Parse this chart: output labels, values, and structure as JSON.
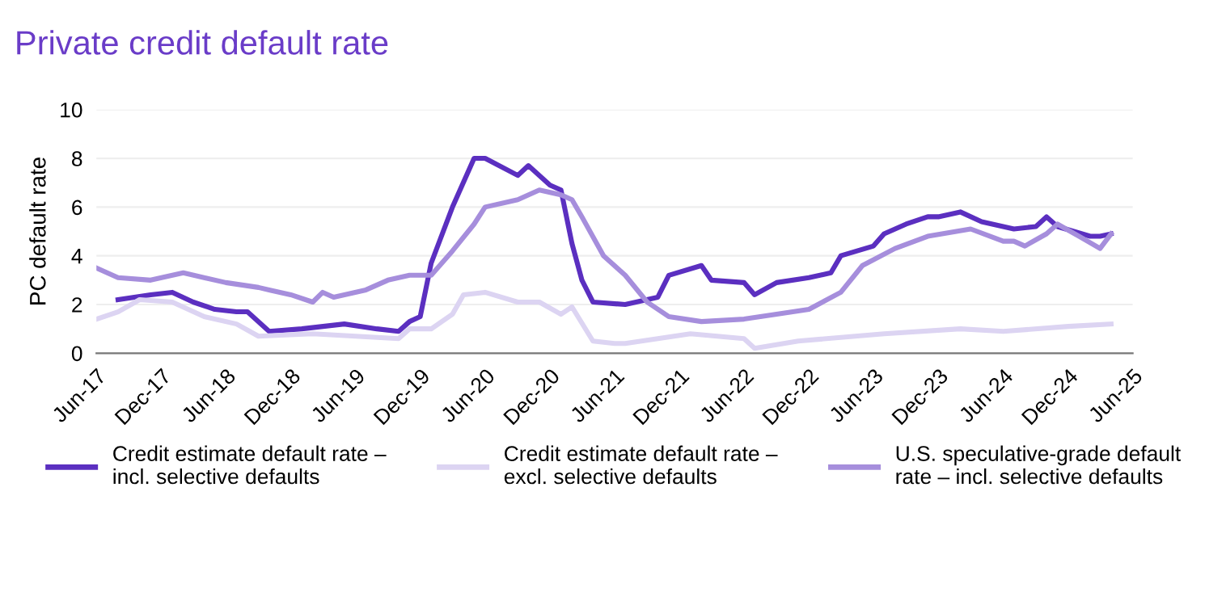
{
  "chart_data": {
    "type": "line",
    "title": "Private credit default rate",
    "ylabel": "PC default rate",
    "ylim": [
      0,
      10
    ],
    "yticks": [
      0,
      2,
      4,
      6,
      8,
      10
    ],
    "xlim": [
      "2017-06",
      "2025-06"
    ],
    "xticks": [
      {
        "value": "2017-06",
        "label": "Jun-17"
      },
      {
        "value": "2017-12",
        "label": "Dec-17"
      },
      {
        "value": "2018-06",
        "label": "Jun-18"
      },
      {
        "value": "2018-12",
        "label": "Dec-18"
      },
      {
        "value": "2019-06",
        "label": "Jun-19"
      },
      {
        "value": "2019-12",
        "label": "Dec-19"
      },
      {
        "value": "2020-06",
        "label": "Jun-20"
      },
      {
        "value": "2020-12",
        "label": "Dec-20"
      },
      {
        "value": "2021-06",
        "label": "Jun-21"
      },
      {
        "value": "2021-12",
        "label": "Dec-21"
      },
      {
        "value": "2022-06",
        "label": "Jun-22"
      },
      {
        "value": "2022-12",
        "label": "Dec-22"
      },
      {
        "value": "2023-06",
        "label": "Jun-23"
      },
      {
        "value": "2023-12",
        "label": "Dec-23"
      },
      {
        "value": "2024-06",
        "label": "Jun-24"
      },
      {
        "value": "2024-12",
        "label": "Dec-24"
      },
      {
        "value": "2025-06",
        "label": "Jun-25"
      }
    ],
    "grid": "y",
    "legend": "bottom",
    "marker": "none",
    "line_style": "solid",
    "series": [
      {
        "name": "Credit estimate default rate –\nincl. selective defaults",
        "color": "#5b2fc0",
        "x": [
          "2017-08",
          "2017-11",
          "2018-01",
          "2018-03",
          "2018-05",
          "2018-07",
          "2018-08",
          "2018-10",
          "2019-01",
          "2019-05",
          "2019-08",
          "2019-10",
          "2019-11",
          "2019-12",
          "2020-01",
          "2020-03",
          "2020-05",
          "2020-06",
          "2020-09",
          "2020-10",
          "2020-12",
          "2021-01",
          "2021-02",
          "2021-03",
          "2021-04",
          "2021-07",
          "2021-10",
          "2021-11",
          "2022-02",
          "2022-03",
          "2022-06",
          "2022-07",
          "2022-09",
          "2022-12",
          "2023-02",
          "2023-03",
          "2023-06",
          "2023-07",
          "2023-09",
          "2023-11",
          "2023-12",
          "2024-02",
          "2024-04",
          "2024-07",
          "2024-09",
          "2024-10",
          "2024-11",
          "2025-02",
          "2025-03",
          "2025-04"
        ],
        "values": [
          2.2,
          2.4,
          2.5,
          2.1,
          1.8,
          1.7,
          1.7,
          0.9,
          1.0,
          1.2,
          1.0,
          0.9,
          1.3,
          1.5,
          3.7,
          6.0,
          8.0,
          8.0,
          7.3,
          7.7,
          6.9,
          6.7,
          4.5,
          3.0,
          2.1,
          2.0,
          2.3,
          3.2,
          3.6,
          3.0,
          2.9,
          2.4,
          2.9,
          3.1,
          3.3,
          4.0,
          4.4,
          4.9,
          5.3,
          5.6,
          5.6,
          5.8,
          5.4,
          5.1,
          5.2,
          5.6,
          5.2,
          4.8,
          4.8,
          4.9
        ]
      },
      {
        "name": "Credit estimate default rate –\nexcl. selective defaults",
        "color": "#dcd4f2",
        "x": [
          "2017-06",
          "2017-08",
          "2017-10",
          "2018-01",
          "2018-04",
          "2018-07",
          "2018-09",
          "2019-02",
          "2019-10",
          "2019-11",
          "2020-01",
          "2020-03",
          "2020-04",
          "2020-06",
          "2020-09",
          "2020-11",
          "2021-01",
          "2021-02",
          "2021-04",
          "2021-06",
          "2021-07",
          "2022-01",
          "2022-06",
          "2022-07",
          "2022-11",
          "2023-07",
          "2024-02",
          "2024-06",
          "2024-12",
          "2025-04"
        ],
        "values": [
          1.4,
          1.7,
          2.2,
          2.1,
          1.5,
          1.2,
          0.7,
          0.8,
          0.6,
          1.0,
          1.0,
          1.6,
          2.4,
          2.5,
          2.1,
          2.1,
          1.6,
          1.9,
          0.5,
          0.4,
          0.4,
          0.8,
          0.6,
          0.2,
          0.5,
          0.8,
          1.0,
          0.9,
          1.1,
          1.2
        ]
      },
      {
        "name": "U.S. speculative-grade default\nrate – incl. selective defaults",
        "color": "#a68edc",
        "x": [
          "2017-06",
          "2017-08",
          "2017-11",
          "2018-02",
          "2018-06",
          "2018-09",
          "2018-10",
          "2018-12",
          "2019-02",
          "2019-03",
          "2019-04",
          "2019-07",
          "2019-09",
          "2019-11",
          "2020-01",
          "2020-03",
          "2020-05",
          "2020-06",
          "2020-09",
          "2020-11",
          "2021-01",
          "2021-02",
          "2021-03",
          "2021-05",
          "2021-07",
          "2021-09",
          "2021-11",
          "2022-02",
          "2022-06",
          "2022-09",
          "2022-12",
          "2023-03",
          "2023-05",
          "2023-08",
          "2023-11",
          "2024-03",
          "2024-06",
          "2024-07",
          "2024-08",
          "2024-10",
          "2024-11",
          "2025-01",
          "2025-03",
          "2025-04"
        ],
        "values": [
          3.5,
          3.1,
          3.0,
          3.3,
          2.9,
          2.7,
          2.6,
          2.4,
          2.1,
          2.5,
          2.3,
          2.6,
          3.0,
          3.2,
          3.2,
          4.2,
          5.3,
          6.0,
          6.3,
          6.7,
          6.5,
          6.3,
          5.6,
          4.0,
          3.2,
          2.1,
          1.5,
          1.3,
          1.4,
          1.6,
          1.8,
          2.5,
          3.6,
          4.3,
          4.8,
          5.1,
          4.6,
          4.6,
          4.4,
          4.9,
          5.3,
          4.8,
          4.3,
          4.9
        ]
      }
    ]
  }
}
